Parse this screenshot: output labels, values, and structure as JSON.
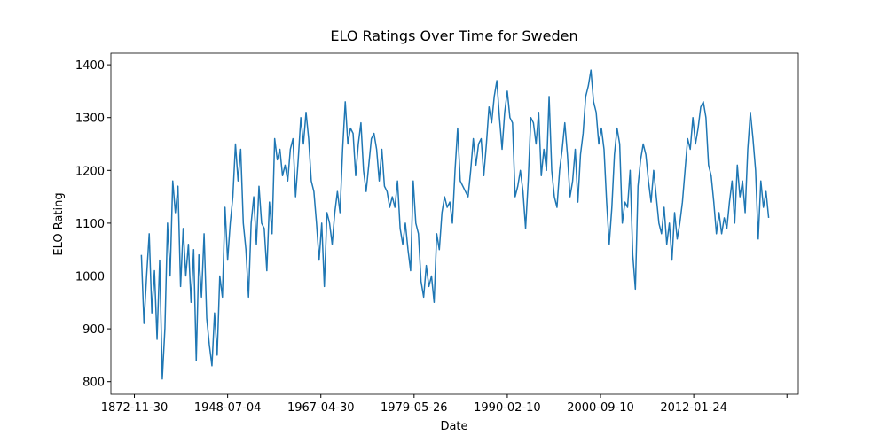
{
  "chart_data": {
    "type": "line",
    "title": "ELO Ratings Over Time for Sweden",
    "x_label": "Date",
    "y_label": "ELO Rating",
    "x": [
      8,
      11,
      14,
      17,
      20,
      23,
      26,
      29,
      32,
      35,
      38,
      41,
      44,
      47,
      50,
      53,
      56,
      59,
      62,
      65,
      68,
      71,
      74,
      77,
      80,
      83,
      86,
      89,
      92,
      95,
      98,
      101,
      104,
      107,
      110,
      113,
      116,
      119,
      122,
      125,
      128,
      131,
      134,
      137,
      140,
      143,
      146,
      149,
      152,
      155,
      158,
      161,
      164,
      167,
      170,
      173,
      176,
      179,
      182,
      185,
      188,
      191,
      194,
      197,
      200,
      203,
      206,
      209,
      212,
      215,
      218,
      221,
      224,
      227,
      230,
      233,
      236,
      239,
      242,
      245,
      248,
      251,
      254,
      257,
      260,
      263,
      266,
      269,
      272,
      275,
      278,
      281,
      284,
      287,
      290,
      293,
      296,
      299,
      302,
      305,
      308,
      311,
      314,
      317,
      320,
      323,
      326,
      329,
      332,
      335,
      338,
      341,
      344,
      347,
      350,
      353,
      356,
      359,
      362,
      365,
      368,
      371,
      374,
      377,
      380,
      383,
      386,
      389,
      392,
      395,
      398,
      401,
      404,
      407,
      410,
      413,
      416,
      419,
      422,
      425,
      428,
      431,
      434,
      437,
      440,
      443,
      446,
      449,
      452,
      455,
      458,
      461,
      464,
      467,
      470,
      473,
      476,
      479,
      482,
      485,
      488,
      491,
      494,
      497,
      500,
      503,
      506,
      509,
      512,
      515,
      518,
      521,
      524,
      527,
      530,
      533,
      536,
      539,
      542,
      545,
      548,
      551,
      554,
      557,
      560,
      563,
      566,
      569,
      572,
      575,
      578,
      581,
      584,
      587,
      590,
      593,
      596,
      599,
      602,
      605,
      608,
      611,
      614,
      617,
      620,
      623,
      626,
      629,
      632,
      635,
      638,
      641,
      644,
      647,
      650,
      653,
      656,
      659,
      662,
      665,
      668,
      671,
      674,
      677,
      680,
      683,
      686,
      689,
      692,
      695,
      698,
      701,
      704,
      707,
      710,
      713,
      716,
      719,
      722,
      725,
      728
    ],
    "series": [
      {
        "name": "Sweden",
        "color": "#1f77b4",
        "values": [
          1040,
          910,
          1000,
          1080,
          930,
          1010,
          880,
          1030,
          805,
          900,
          1100,
          1000,
          1180,
          1120,
          1170,
          980,
          1090,
          1000,
          1060,
          950,
          1050,
          840,
          1040,
          960,
          1080,
          920,
          870,
          830,
          930,
          850,
          1000,
          960,
          1130,
          1030,
          1100,
          1150,
          1250,
          1180,
          1240,
          1100,
          1050,
          960,
          1100,
          1150,
          1060,
          1170,
          1100,
          1090,
          1010,
          1140,
          1080,
          1260,
          1220,
          1240,
          1190,
          1210,
          1180,
          1240,
          1260,
          1150,
          1220,
          1300,
          1250,
          1310,
          1260,
          1180,
          1160,
          1100,
          1030,
          1100,
          980,
          1120,
          1100,
          1060,
          1120,
          1160,
          1120,
          1240,
          1330,
          1250,
          1280,
          1270,
          1190,
          1250,
          1290,
          1200,
          1160,
          1210,
          1260,
          1270,
          1240,
          1180,
          1240,
          1170,
          1160,
          1130,
          1150,
          1130,
          1180,
          1090,
          1060,
          1100,
          1050,
          1010,
          1180,
          1100,
          1080,
          990,
          960,
          1020,
          980,
          1000,
          950,
          1080,
          1050,
          1120,
          1150,
          1130,
          1140,
          1100,
          1200,
          1280,
          1180,
          1170,
          1160,
          1150,
          1200,
          1260,
          1210,
          1250,
          1260,
          1190,
          1250,
          1320,
          1290,
          1340,
          1370,
          1300,
          1240,
          1310,
          1350,
          1300,
          1290,
          1150,
          1170,
          1200,
          1160,
          1090,
          1180,
          1300,
          1290,
          1250,
          1310,
          1190,
          1240,
          1200,
          1340,
          1200,
          1150,
          1130,
          1200,
          1240,
          1290,
          1230,
          1150,
          1180,
          1240,
          1140,
          1230,
          1270,
          1340,
          1360,
          1390,
          1330,
          1310,
          1250,
          1280,
          1240,
          1140,
          1060,
          1130,
          1230,
          1280,
          1250,
          1100,
          1140,
          1130,
          1200,
          1040,
          975,
          1170,
          1220,
          1250,
          1230,
          1180,
          1140,
          1200,
          1150,
          1100,
          1080,
          1130,
          1060,
          1100,
          1030,
          1120,
          1070,
          1100,
          1140,
          1200,
          1260,
          1240,
          1300,
          1250,
          1280,
          1320,
          1330,
          1300,
          1210,
          1190,
          1140,
          1080,
          1120,
          1080,
          1110,
          1090,
          1140,
          1180,
          1100,
          1210,
          1150,
          1180,
          1120,
          1240,
          1310,
          1260,
          1200,
          1070,
          1180,
          1130,
          1160,
          1110
        ]
      }
    ],
    "xlim": [
      -27,
      762
    ],
    "xticks": [
      {
        "value": 0,
        "label": "1872-11-30"
      },
      {
        "value": 107,
        "label": "1948-07-04"
      },
      {
        "value": 214,
        "label": "1967-04-30"
      },
      {
        "value": 321,
        "label": "1979-05-26"
      },
      {
        "value": 428,
        "label": "1990-02-10"
      },
      {
        "value": 535,
        "label": "2000-09-10"
      },
      {
        "value": 642,
        "label": "2012-01-24"
      },
      {
        "value": 749,
        "label": null
      }
    ],
    "ylim": [
      776,
      1422
    ],
    "yticks": [
      800,
      900,
      1000,
      1100,
      1200,
      1300,
      1400
    ]
  }
}
